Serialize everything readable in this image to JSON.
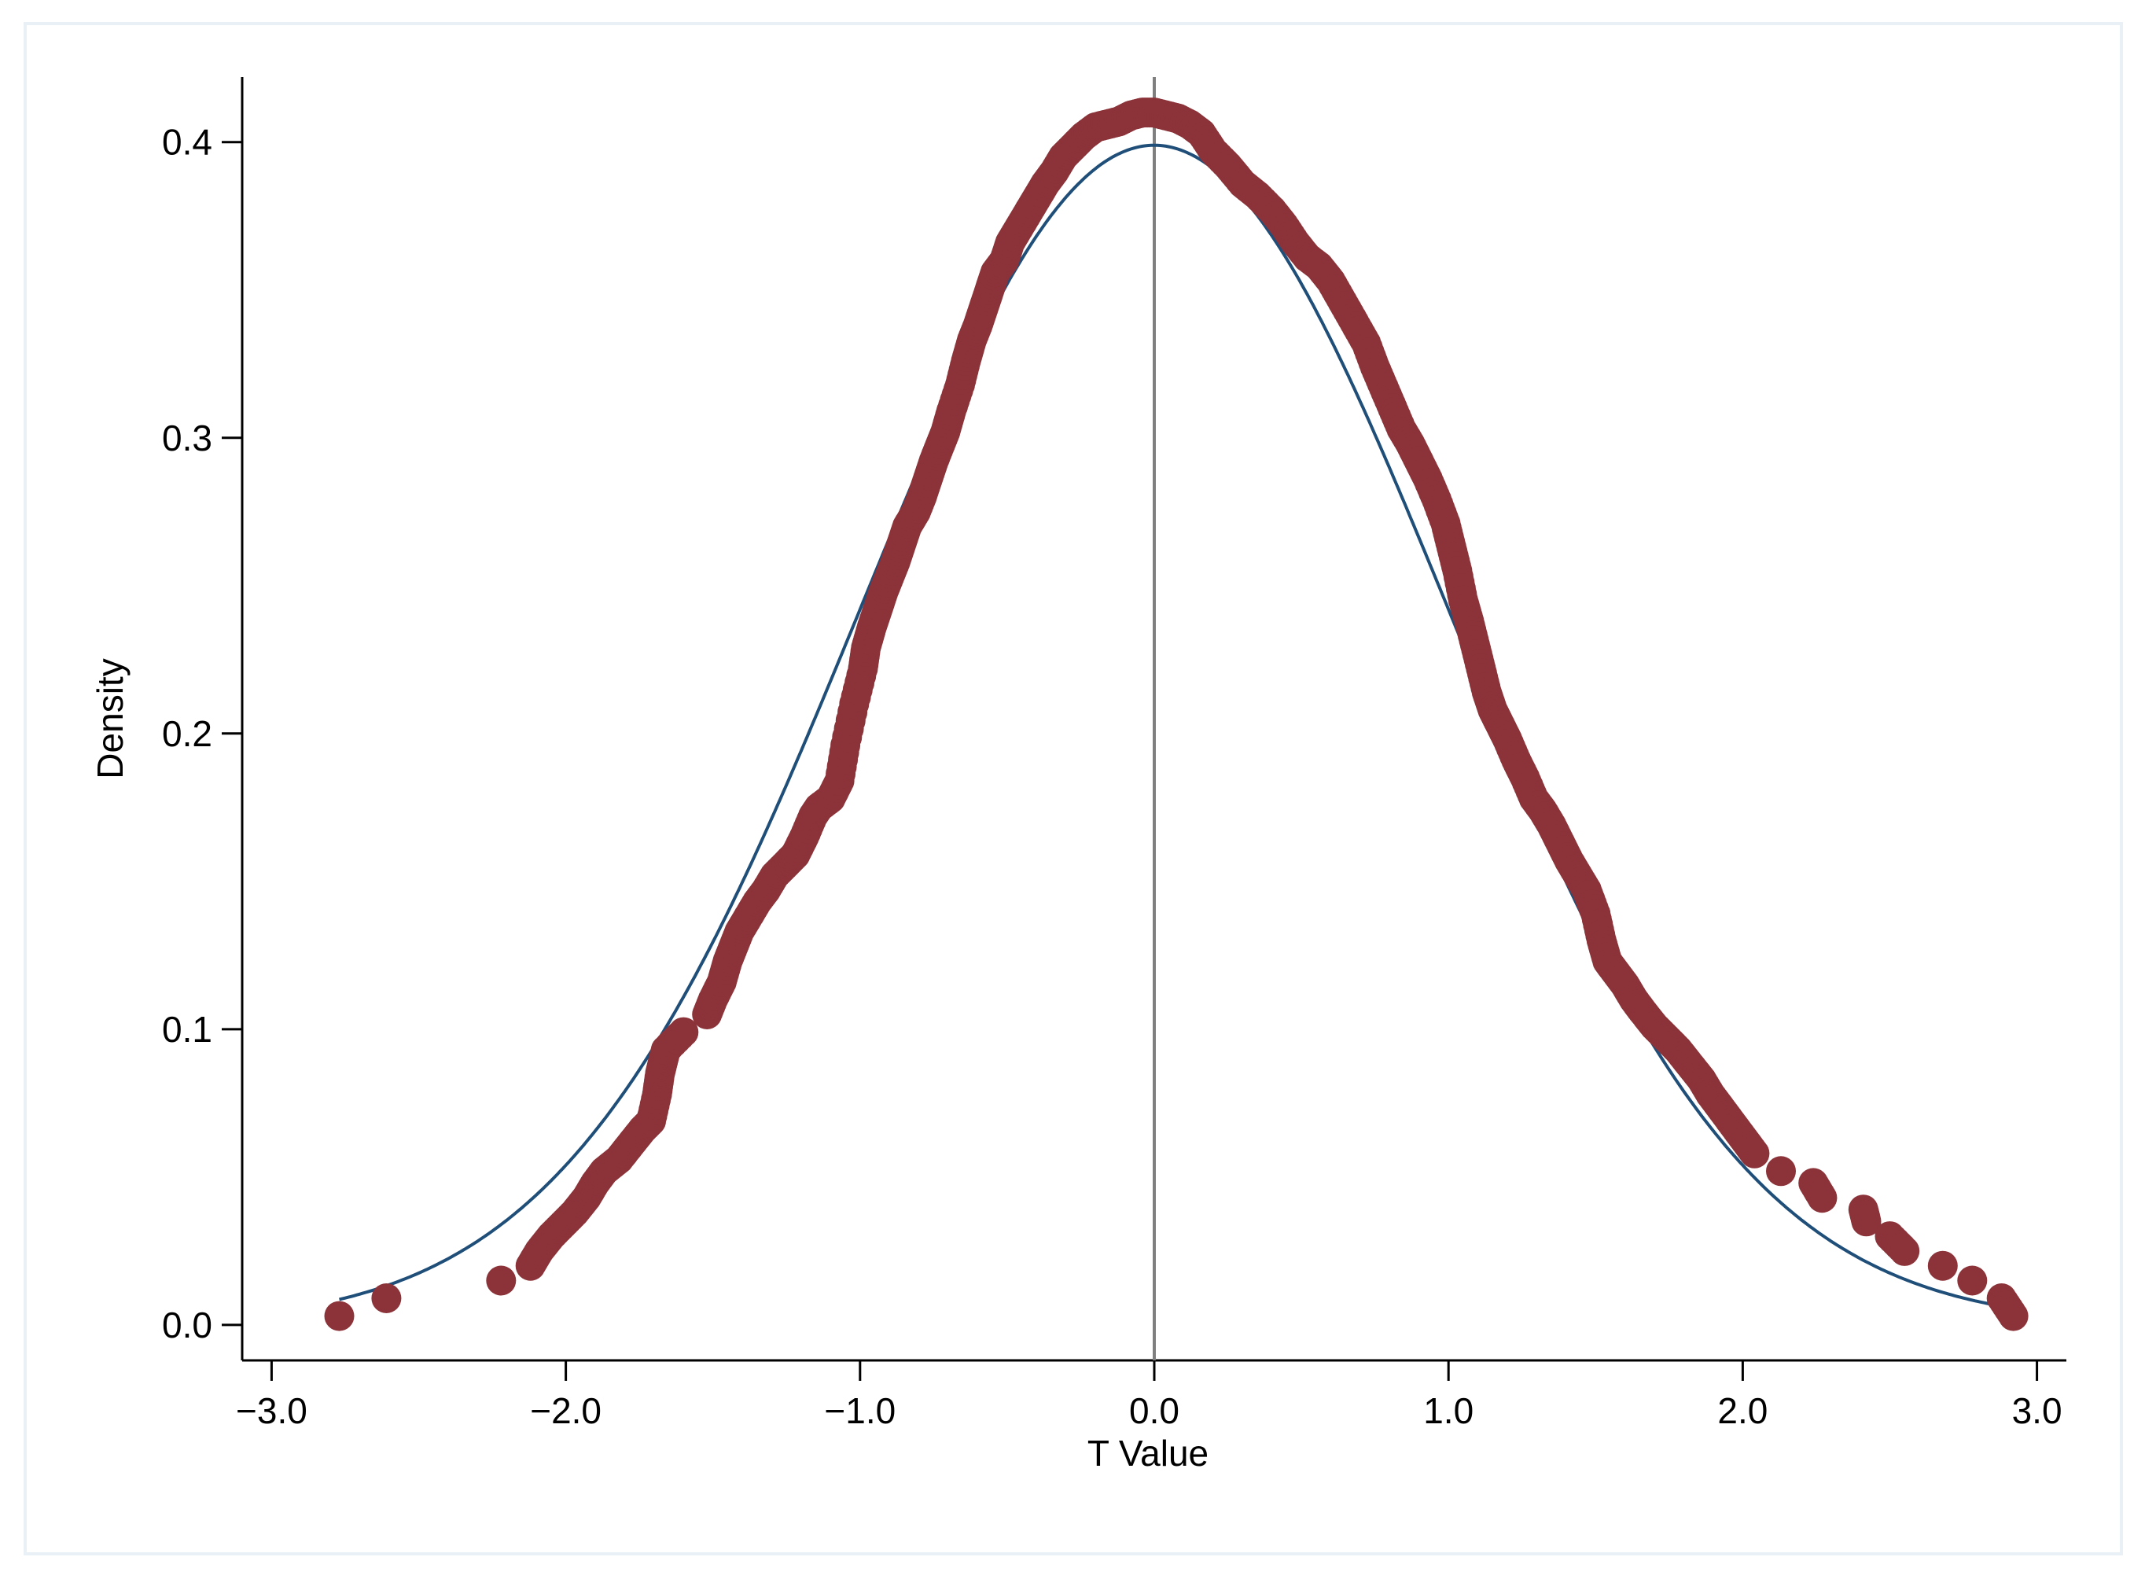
{
  "chart_data": {
    "type": "scatter",
    "title": "",
    "xlabel": "T Value",
    "ylabel": "Density",
    "xlim": [
      -3.1,
      3.1
    ],
    "ylim": [
      -0.012,
      0.422
    ],
    "x_ticks": [
      {
        "value": -3,
        "label": "−3.0"
      },
      {
        "value": -2,
        "label": "−2.0"
      },
      {
        "value": -1,
        "label": "−1.0"
      },
      {
        "value": 0,
        "label": "0.0"
      },
      {
        "value": 1,
        "label": "1.0"
      },
      {
        "value": 2,
        "label": "2.0"
      },
      {
        "value": 3,
        "label": "3.0"
      }
    ],
    "y_ticks": [
      {
        "value": 0,
        "label": "0.0"
      },
      {
        "value": 0.1,
        "label": "0.1"
      },
      {
        "value": 0.2,
        "label": "0.2"
      },
      {
        "value": 0.3,
        "label": "0.3"
      },
      {
        "value": 0.4,
        "label": "0.4"
      }
    ],
    "grid": false,
    "legend": "none",
    "reference_line": {
      "x": 0,
      "color": "#7f7f7f"
    },
    "series": [
      {
        "kind": "points",
        "color": "#8b3339",
        "x": [
          -2.77,
          -2.61,
          -2.22,
          -2.12,
          -2.09,
          -2.05,
          -2.01,
          -1.97,
          -1.93,
          -1.9,
          -1.87,
          -1.82,
          -1.78,
          -1.74,
          -1.71,
          -1.69,
          -1.68,
          -1.67,
          -1.66,
          -1.6,
          -1.52,
          -1.5,
          -1.47,
          -1.45,
          -1.43,
          -1.41,
          -1.38,
          -1.35,
          -1.32,
          -1.29,
          -1.25,
          -1.22,
          -1.19,
          -1.16,
          -1.14,
          -1.1,
          -1.07,
          -1.05,
          -1.02,
          -0.99,
          -0.98,
          -0.96,
          -0.94,
          -0.92,
          -0.9,
          -0.88,
          -0.86,
          -0.84,
          -0.81,
          -0.79,
          -0.77,
          -0.75,
          -0.73,
          -0.71,
          -0.69,
          -0.66,
          -0.64,
          -0.62,
          -0.6,
          -0.58,
          -0.56,
          -0.54,
          -0.51,
          -0.49,
          -0.46,
          -0.43,
          -0.4,
          -0.37,
          -0.34,
          -0.31,
          -0.27,
          -0.24,
          -0.2,
          -0.16,
          -0.12,
          -0.08,
          -0.04,
          0.0,
          0.04,
          0.08,
          0.12,
          0.16,
          0.2,
          0.25,
          0.3,
          0.35,
          0.4,
          0.44,
          0.48,
          0.52,
          0.56,
          0.6,
          0.64,
          0.68,
          0.72,
          0.75,
          0.78,
          0.81,
          0.84,
          0.87,
          0.9,
          0.93,
          0.96,
          0.99,
          1.01,
          1.03,
          1.05,
          1.07,
          1.09,
          1.11,
          1.13,
          1.15,
          1.17,
          1.2,
          1.23,
          1.26,
          1.29,
          1.32,
          1.35,
          1.38,
          1.41,
          1.44,
          1.47,
          1.5,
          1.52,
          1.54,
          1.57,
          1.6,
          1.63,
          1.66,
          1.7,
          1.74,
          1.78,
          1.82,
          1.86,
          1.89,
          1.92,
          1.95,
          1.98,
          2.01,
          2.04,
          2.13,
          2.24,
          2.27,
          2.41,
          2.42,
          2.5,
          2.55,
          2.68,
          2.78,
          2.88,
          2.92
        ],
        "y": [
          0.003,
          0.009,
          0.015,
          0.02,
          0.025,
          0.03,
          0.034,
          0.038,
          0.043,
          0.048,
          0.052,
          0.056,
          0.061,
          0.066,
          0.069,
          0.078,
          0.085,
          0.089,
          0.093,
          0.099,
          0.105,
          0.11,
          0.116,
          0.123,
          0.128,
          0.133,
          0.138,
          0.143,
          0.147,
          0.152,
          0.156,
          0.159,
          0.165,
          0.172,
          0.175,
          0.178,
          0.184,
          0.196,
          0.21,
          0.222,
          0.229,
          0.236,
          0.242,
          0.248,
          0.253,
          0.258,
          0.264,
          0.27,
          0.275,
          0.28,
          0.286,
          0.292,
          0.297,
          0.302,
          0.309,
          0.318,
          0.326,
          0.333,
          0.338,
          0.344,
          0.35,
          0.356,
          0.36,
          0.366,
          0.371,
          0.376,
          0.381,
          0.386,
          0.39,
          0.395,
          0.399,
          0.402,
          0.405,
          0.406,
          0.407,
          0.409,
          0.41,
          0.41,
          0.409,
          0.408,
          0.406,
          0.403,
          0.397,
          0.392,
          0.386,
          0.382,
          0.377,
          0.372,
          0.366,
          0.361,
          0.358,
          0.353,
          0.346,
          0.339,
          0.332,
          0.324,
          0.317,
          0.31,
          0.303,
          0.298,
          0.292,
          0.286,
          0.279,
          0.271,
          0.263,
          0.255,
          0.245,
          0.238,
          0.23,
          0.222,
          0.214,
          0.208,
          0.204,
          0.198,
          0.191,
          0.185,
          0.178,
          0.174,
          0.169,
          0.163,
          0.157,
          0.152,
          0.147,
          0.139,
          0.13,
          0.123,
          0.119,
          0.115,
          0.11,
          0.106,
          0.101,
          0.097,
          0.093,
          0.088,
          0.083,
          0.078,
          0.074,
          0.07,
          0.066,
          0.062,
          0.058,
          0.052,
          0.048,
          0.043,
          0.039,
          0.035,
          0.03,
          0.025,
          0.02,
          0.015,
          0.009,
          0.003
        ]
      },
      {
        "kind": "line",
        "color": "#1f4e79",
        "distribution": "standard normal density"
      }
    ]
  }
}
